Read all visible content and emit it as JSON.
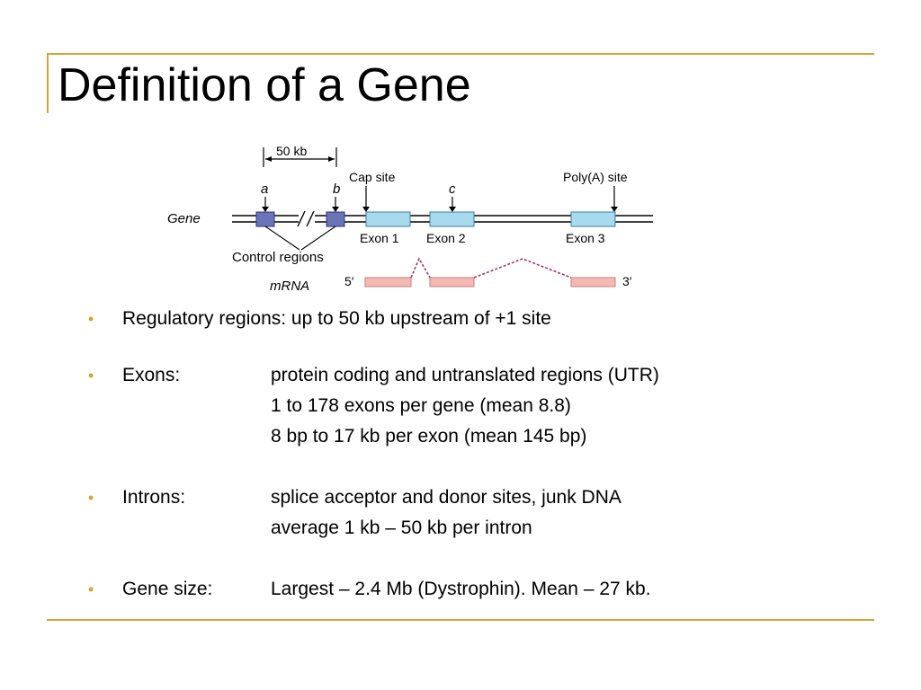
{
  "slide": {
    "title": "Definition of a Gene"
  },
  "diagram": {
    "scale_label": "50 kb",
    "control_a": "a",
    "control_b": "b",
    "cap_site": "Cap site",
    "mark_c": "c",
    "polya_site": "Poly(A) site",
    "gene_label": "Gene",
    "exon1": "Exon 1",
    "exon2": "Exon 2",
    "exon3": "Exon 3",
    "control_regions": "Control regions",
    "mrna_label": "mRNA",
    "five_prime": "5′",
    "three_prime": "3′",
    "colors": {
      "control_region": "#6a74b9",
      "exon": "#a8daef",
      "mrna": "#f4b9b3",
      "splice_line": "#a0336b"
    }
  },
  "bullets": [
    {
      "full": "Regulatory regions:  up to 50 kb upstream of +1 site"
    },
    {
      "label": "Exons:",
      "desc": "protein coding and untranslated regions (UTR)",
      "continuation": [
        "1 to 178 exons per gene (mean 8.8)",
        "8 bp to 17 kb per exon (mean 145 bp)"
      ]
    },
    {
      "label": "Introns:",
      "desc": "splice acceptor and donor sites, junk DNA",
      "continuation": [
        "average 1 kb – 50 kb per intron"
      ]
    },
    {
      "label": "Gene size:",
      "desc": "Largest – 2.4 Mb (Dystrophin).  Mean – 27 kb."
    }
  ]
}
